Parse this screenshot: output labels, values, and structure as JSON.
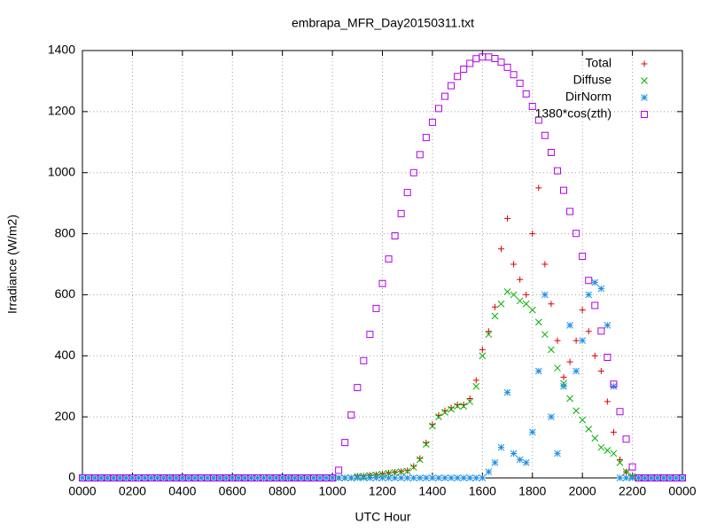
{
  "chart_data": {
    "type": "scatter",
    "title": "embrapa_MFR_Day20150311.txt",
    "x_label": "UTC Hour",
    "y_label": "Irradiance (W/m2)",
    "xlim": [
      0,
      24
    ],
    "ylim": [
      0,
      1400
    ],
    "xticks": [
      {
        "value": 0,
        "label": "0000"
      },
      {
        "value": 2,
        "label": "0200"
      },
      {
        "value": 4,
        "label": "0400"
      },
      {
        "value": 6,
        "label": "0600"
      },
      {
        "value": 8,
        "label": "0800"
      },
      {
        "value": 10,
        "label": "1000"
      },
      {
        "value": 12,
        "label": "1200"
      },
      {
        "value": 14,
        "label": "1400"
      },
      {
        "value": 16,
        "label": "1600"
      },
      {
        "value": 18,
        "label": "1800"
      },
      {
        "value": 20,
        "label": "2000"
      },
      {
        "value": 22,
        "label": "2200"
      },
      {
        "value": 24,
        "label": "0000"
      }
    ],
    "yticks": [
      0,
      200,
      400,
      600,
      800,
      1000,
      1200,
      1400
    ],
    "grid": true,
    "legend": "top-right",
    "x": [
      0,
      0.25,
      0.5,
      0.75,
      1,
      1.25,
      1.5,
      1.75,
      2,
      2.25,
      2.5,
      2.75,
      3,
      3.25,
      3.5,
      3.75,
      4,
      4.25,
      4.5,
      4.75,
      5,
      5.25,
      5.5,
      5.75,
      6,
      6.25,
      6.5,
      6.75,
      7,
      7.25,
      7.5,
      7.75,
      8,
      8.25,
      8.5,
      8.75,
      9,
      9.25,
      9.5,
      9.75,
      10,
      10.25,
      10.5,
      10.75,
      11,
      11.25,
      11.5,
      11.75,
      12,
      12.25,
      12.5,
      12.75,
      13,
      13.25,
      13.5,
      13.75,
      14,
      14.25,
      14.5,
      14.75,
      15,
      15.25,
      15.5,
      15.75,
      16,
      16.25,
      16.5,
      16.75,
      17,
      17.25,
      17.5,
      17.75,
      18,
      18.25,
      18.5,
      18.75,
      19,
      19.25,
      19.5,
      19.75,
      20,
      20.25,
      20.5,
      20.75,
      21,
      21.25,
      21.5,
      21.75,
      22,
      22.25,
      22.5,
      22.75,
      23,
      23.25,
      23.5,
      23.75,
      24
    ],
    "series": [
      {
        "name": "Total",
        "color": "#e00000",
        "marker": "plus",
        "values": [
          0,
          0,
          0,
          0,
          0,
          0,
          0,
          0,
          0,
          0,
          0,
          0,
          0,
          0,
          0,
          0,
          0,
          0,
          0,
          0,
          0,
          0,
          0,
          0,
          0,
          0,
          0,
          0,
          0,
          0,
          0,
          0,
          0,
          0,
          0,
          0,
          0,
          0,
          0,
          0,
          0,
          0,
          0,
          0,
          6,
          6,
          9,
          11,
          13,
          16,
          19,
          21,
          24,
          38,
          64,
          115,
          175,
          205,
          220,
          230,
          240,
          240,
          260,
          320,
          420,
          480,
          560,
          750,
          850,
          700,
          650,
          600,
          800,
          950,
          700,
          570,
          450,
          330,
          380,
          450,
          550,
          480,
          400,
          350,
          250,
          150,
          60,
          20,
          5,
          0,
          0,
          0,
          0,
          0,
          0,
          0,
          0
        ]
      },
      {
        "name": "Diffuse",
        "color": "#00b000",
        "marker": "cross",
        "values": [
          0,
          0,
          0,
          0,
          0,
          0,
          0,
          0,
          0,
          0,
          0,
          0,
          0,
          0,
          0,
          0,
          0,
          0,
          0,
          0,
          0,
          0,
          0,
          0,
          0,
          0,
          0,
          0,
          0,
          0,
          0,
          0,
          0,
          0,
          0,
          0,
          0,
          0,
          0,
          0,
          0,
          0,
          0,
          0,
          5,
          5,
          8,
          10,
          12,
          15,
          18,
          20,
          22,
          35,
          60,
          110,
          170,
          200,
          215,
          225,
          235,
          235,
          250,
          300,
          400,
          470,
          530,
          570,
          610,
          600,
          580,
          570,
          550,
          510,
          470,
          420,
          360,
          310,
          260,
          220,
          190,
          160,
          130,
          100,
          90,
          80,
          50,
          20,
          5,
          0,
          0,
          0,
          0,
          0,
          0,
          0,
          0
        ]
      },
      {
        "name": "DirNorm",
        "color": "#1e90e8",
        "marker": "star",
        "values": [
          0,
          0,
          0,
          0,
          0,
          0,
          0,
          0,
          0,
          0,
          0,
          0,
          0,
          0,
          0,
          0,
          0,
          0,
          0,
          0,
          0,
          0,
          0,
          0,
          0,
          0,
          0,
          0,
          0,
          0,
          0,
          0,
          0,
          0,
          0,
          0,
          0,
          0,
          0,
          0,
          0,
          0,
          0,
          0,
          0,
          0,
          0,
          0,
          0,
          0,
          0,
          0,
          0,
          0,
          0,
          0,
          0,
          0,
          0,
          0,
          0,
          0,
          0,
          0,
          0,
          20,
          50,
          100,
          280,
          80,
          60,
          50,
          150,
          350,
          600,
          200,
          80,
          300,
          500,
          350,
          450,
          600,
          640,
          620,
          500,
          300,
          0,
          0,
          0,
          0,
          0,
          0,
          0,
          0,
          0,
          0,
          0
        ]
      },
      {
        "name": "1380*cos(zth)",
        "color": "#b000e8",
        "marker": "square",
        "values": [
          0,
          0,
          0,
          0,
          0,
          0,
          0,
          0,
          0,
          0,
          0,
          0,
          0,
          0,
          0,
          0,
          0,
          0,
          0,
          0,
          0,
          0,
          0,
          0,
          0,
          0,
          0,
          0,
          0,
          0,
          0,
          0,
          0,
          0,
          0,
          0,
          0,
          0,
          0,
          0,
          0,
          25,
          116,
          206,
          296,
          384,
          470,
          555,
          637,
          717,
          793,
          866,
          935,
          1000,
          1059,
          1115,
          1165,
          1210,
          1250,
          1285,
          1315,
          1339,
          1358,
          1373,
          1379,
          1379,
          1374,
          1362,
          1345,
          1321,
          1293,
          1258,
          1217,
          1172,
          1122,
          1066,
          1006,
          942,
          873,
          801,
          726,
          647,
          565,
          481,
          395,
          307,
          217,
          127,
          36,
          0,
          0,
          0,
          0,
          0,
          0,
          0,
          0
        ]
      }
    ]
  }
}
